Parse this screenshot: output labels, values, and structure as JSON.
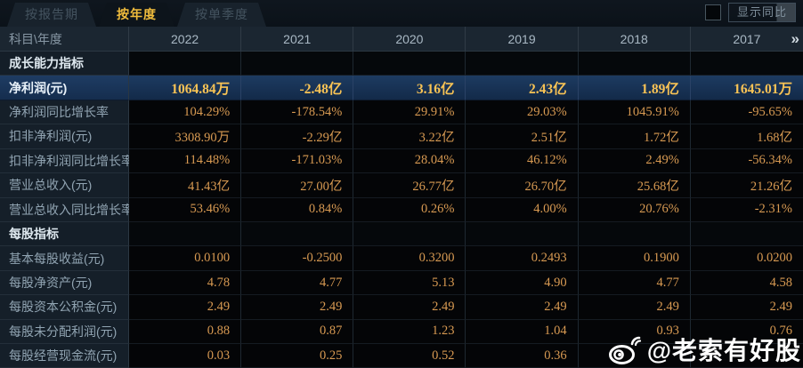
{
  "tabs": [
    {
      "label": "按报告期",
      "active": false
    },
    {
      "label": "按年度",
      "active": true
    },
    {
      "label": "按单季度",
      "active": false
    }
  ],
  "controls": {
    "show_yoy_label": "显示同比"
  },
  "table": {
    "corner_header": "科目\\年度",
    "year_columns": [
      "2022",
      "2021",
      "2020",
      "2019",
      "2018",
      "2017"
    ],
    "more_icon": "»",
    "rows": [
      {
        "type": "section",
        "label": "成长能力指标",
        "values": [
          "",
          "",
          "",
          "",
          "",
          ""
        ]
      },
      {
        "type": "highlight",
        "label": "净利润(元)",
        "values": [
          "1064.84万",
          "-2.48亿",
          "3.16亿",
          "2.43亿",
          "1.89亿",
          "1645.01万"
        ]
      },
      {
        "type": "data",
        "label": "净利润同比增长率",
        "values": [
          "104.29%",
          "-178.54%",
          "29.91%",
          "29.03%",
          "1045.91%",
          "-95.65%"
        ]
      },
      {
        "type": "data",
        "label": "扣非净利润(元)",
        "values": [
          "3308.90万",
          "-2.29亿",
          "3.22亿",
          "2.51亿",
          "1.72亿",
          "1.68亿"
        ]
      },
      {
        "type": "data",
        "label": "扣非净利润同比增长率",
        "values": [
          "114.48%",
          "-171.03%",
          "28.04%",
          "46.12%",
          "2.49%",
          "-56.34%"
        ]
      },
      {
        "type": "data",
        "label": "营业总收入(元)",
        "values": [
          "41.43亿",
          "27.00亿",
          "26.77亿",
          "26.70亿",
          "25.68亿",
          "21.26亿"
        ]
      },
      {
        "type": "data",
        "label": "营业总收入同比增长率",
        "values": [
          "53.46%",
          "0.84%",
          "0.26%",
          "4.00%",
          "20.76%",
          "-2.31%"
        ]
      },
      {
        "type": "section",
        "label": "每股指标",
        "values": [
          "",
          "",
          "",
          "",
          "",
          ""
        ]
      },
      {
        "type": "data",
        "label": "基本每股收益(元)",
        "values": [
          "0.0100",
          "-0.2500",
          "0.3200",
          "0.2493",
          "0.1900",
          "0.0200"
        ]
      },
      {
        "type": "data",
        "label": "每股净资产(元)",
        "values": [
          "4.78",
          "4.77",
          "5.13",
          "4.90",
          "4.77",
          "4.58"
        ]
      },
      {
        "type": "data",
        "label": "每股资本公积金(元)",
        "values": [
          "2.49",
          "2.49",
          "2.49",
          "2.49",
          "2.49",
          "2.49"
        ]
      },
      {
        "type": "data",
        "label": "每股未分配利润(元)",
        "values": [
          "0.88",
          "0.87",
          "1.23",
          "1.04",
          "0.93",
          "0.76"
        ]
      },
      {
        "type": "data",
        "label": "每股经营现金流(元)",
        "values": [
          "0.03",
          "0.25",
          "0.52",
          "0.36",
          "",
          ""
        ]
      }
    ]
  },
  "watermark": {
    "handle": "@老索有好股"
  },
  "colors": {
    "accent_gold": "#f0bc3c",
    "value_orange": "#d89a52",
    "highlight_gold": "#f8c355",
    "highlight_row_bg": "#1b3a60",
    "label_cell_bg": "#151f29",
    "header_bg": "#1b2631"
  }
}
